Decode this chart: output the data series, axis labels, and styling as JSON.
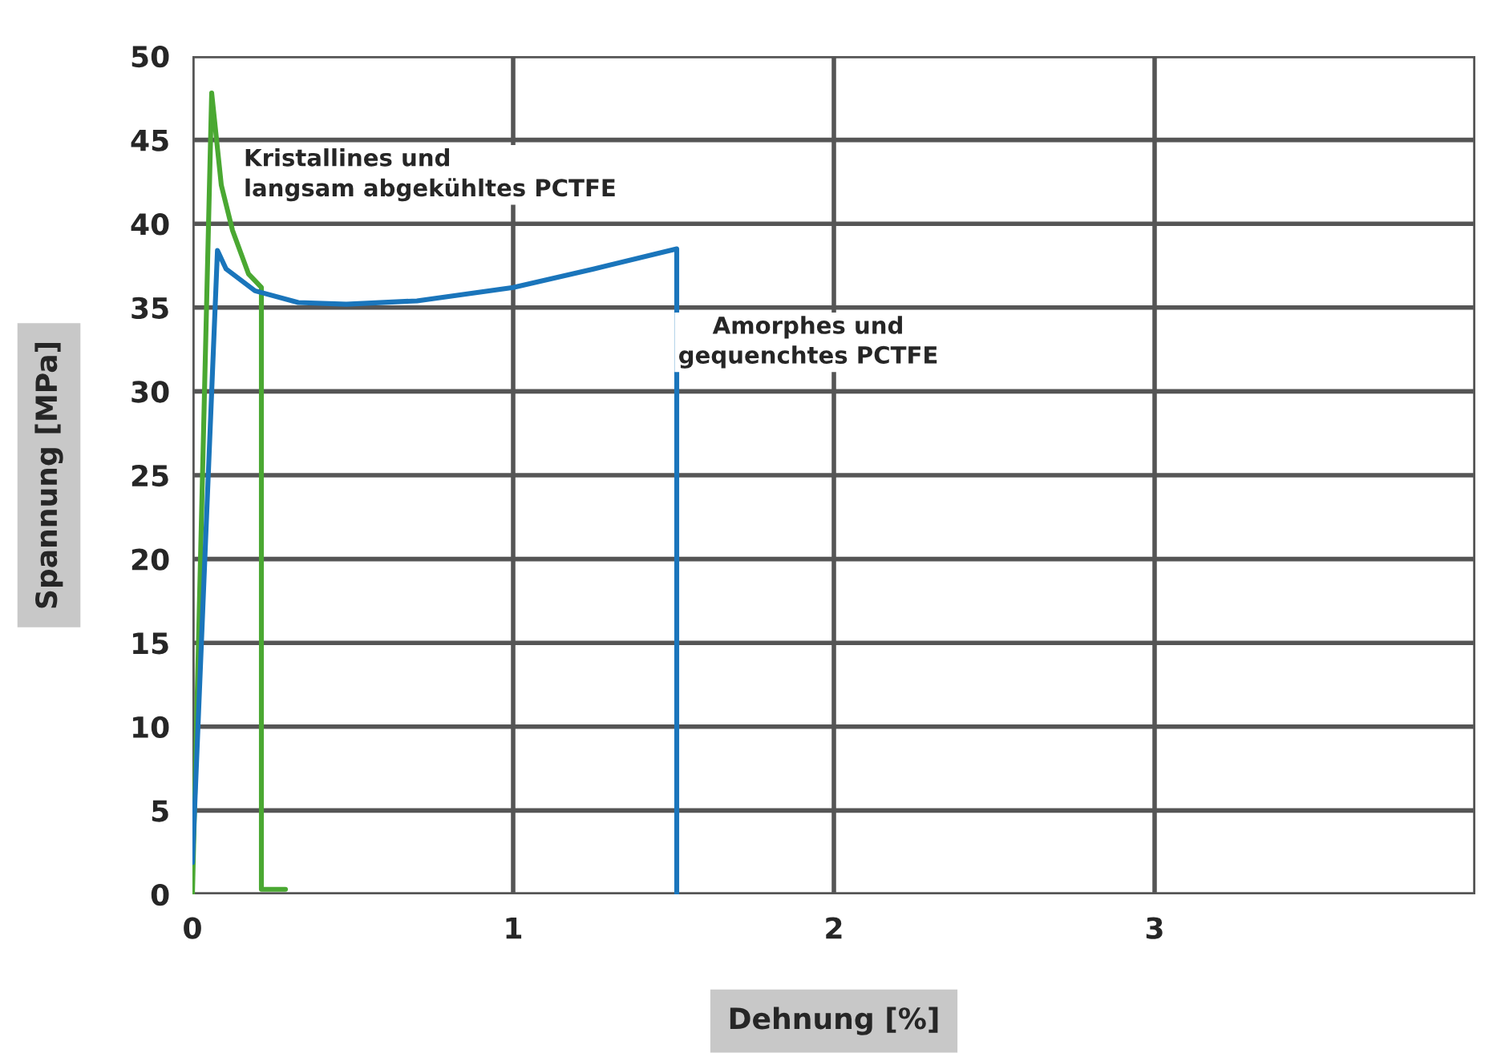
{
  "chart_data": {
    "type": "line",
    "xlabel": "Dehnung [%]",
    "ylabel": "Spannung [MPa]",
    "xlim": [
      0,
      4
    ],
    "xticks": [
      0,
      1,
      2,
      3,
      {
        "value": 4,
        "label": null
      }
    ],
    "ylim": [
      0,
      50
    ],
    "yticks": [
      0,
      5,
      10,
      15,
      20,
      25,
      30,
      35,
      40,
      45,
      50
    ],
    "grid": true,
    "legend": false,
    "marker": "none",
    "line_style": "solid",
    "series": [
      {
        "color": "#4aa832",
        "x": [
          0,
          0.06,
          0.09,
          0.125,
          0.175,
          0.215,
          0.215,
          0.29
        ],
        "values": [
          0,
          47.8,
          42.3,
          39.6,
          37.0,
          36.2,
          0.3,
          0.3
        ]
      },
      {
        "color": "#1a75bb",
        "x": [
          0,
          0.078,
          0.105,
          0.195,
          0.33,
          0.48,
          0.7,
          1.0,
          1.25,
          1.51,
          1.51
        ],
        "values": [
          1.9,
          38.4,
          37.3,
          36.0,
          35.3,
          35.2,
          35.4,
          36.2,
          37.3,
          38.5,
          0
        ]
      }
    ],
    "annotations": [
      "Kristallines und\nlangsam abgekühltes PCTFE",
      "Amorphes und\ngequenchtes PCTFE"
    ]
  }
}
